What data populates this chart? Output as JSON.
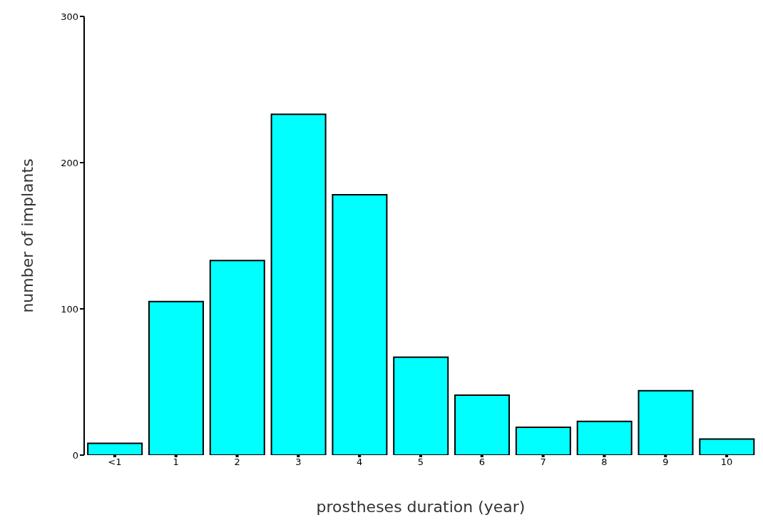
{
  "chart_data": {
    "type": "bar",
    "xlabel": "prostheses duration (year)",
    "ylabel": "number of implants",
    "categories": [
      "<1",
      "1",
      "2",
      "3",
      "4",
      "5",
      "6",
      "7",
      "8",
      "9",
      "10"
    ],
    "values": [
      8,
      105,
      133,
      233,
      178,
      67,
      41,
      19,
      23,
      44,
      11
    ],
    "color": "#00ffff",
    "ylim": [
      0,
      300
    ],
    "yticks": [
      0,
      100,
      200,
      300
    ],
    "grid": false,
    "legend": false
  }
}
